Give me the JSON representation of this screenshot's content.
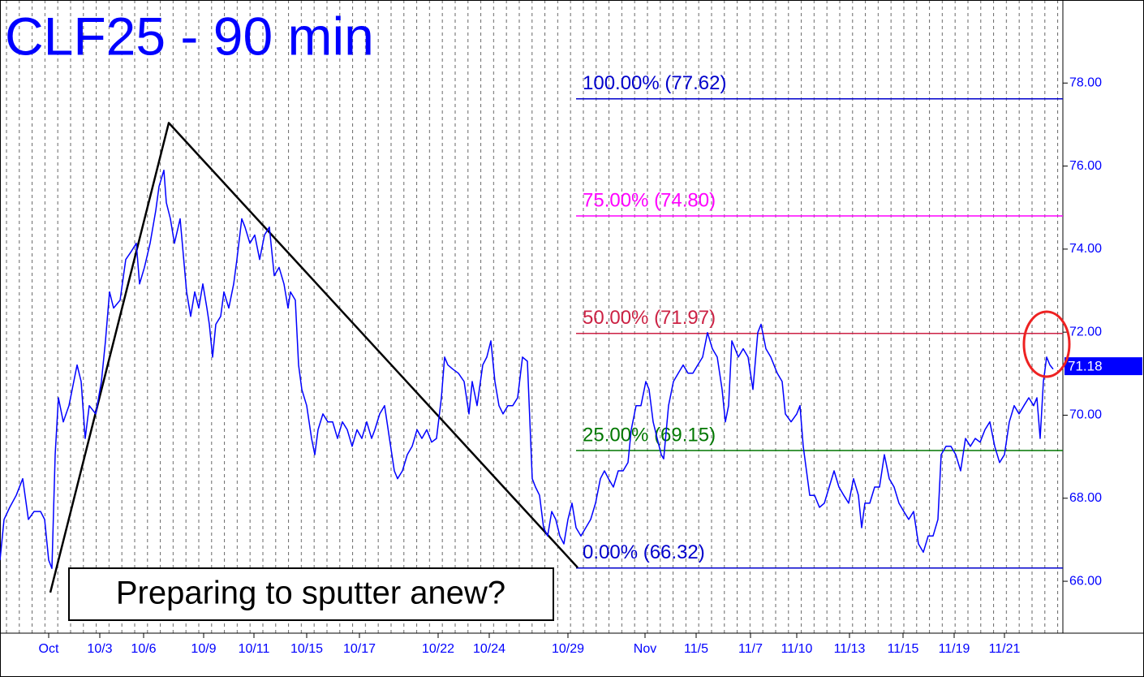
{
  "chart_data": {
    "type": "line",
    "title": "CLF25 - 90 min",
    "xlim": [
      0,
      1310
    ],
    "ylim": [
      64.75,
      80.0
    ],
    "xticks": [
      {
        "value": 60,
        "label": "Oct"
      },
      {
        "value": 123,
        "label": "10/3"
      },
      {
        "value": 177,
        "label": "10/6"
      },
      {
        "value": 251,
        "label": "10/9"
      },
      {
        "value": 313,
        "label": "10/11"
      },
      {
        "value": 378,
        "label": "10/15"
      },
      {
        "value": 443,
        "label": "10/17"
      },
      {
        "value": 540,
        "label": "10/22"
      },
      {
        "value": 603,
        "label": "10/24"
      },
      {
        "value": 700,
        "label": "10/29"
      },
      {
        "value": 795,
        "label": "Nov"
      },
      {
        "value": 858,
        "label": "11/5"
      },
      {
        "value": 925,
        "label": "11/7"
      },
      {
        "value": 982,
        "label": "11/10"
      },
      {
        "value": 1047,
        "label": "11/13"
      },
      {
        "value": 1113,
        "label": "11/15"
      },
      {
        "value": 1176,
        "label": "11/19"
      },
      {
        "value": 1238,
        "label": "11/21"
      }
    ],
    "yticks": [
      {
        "value": 66,
        "label": "66.00"
      },
      {
        "value": 68,
        "label": "68.00"
      },
      {
        "value": 70,
        "label": "70.00"
      },
      {
        "value": 72,
        "label": "72.00"
      },
      {
        "value": 74,
        "label": "74.00"
      },
      {
        "value": 76,
        "label": "76.00"
      },
      {
        "value": 78,
        "label": "78.00"
      }
    ],
    "series": [
      {
        "color": "#0000ff",
        "x": [
          0,
          5,
          12,
          20,
          28,
          35,
          42,
          50,
          55,
          60,
          64,
          68,
          72,
          78,
          85,
          95,
          100,
          105,
          110,
          118,
          125,
          130,
          135,
          140,
          148,
          155,
          162,
          168,
          172,
          178,
          185,
          192,
          196,
          202,
          205,
          210,
          215,
          222,
          230,
          235,
          240,
          245,
          250,
          255,
          258,
          262,
          266,
          272,
          276,
          282,
          288,
          292,
          298,
          302,
          308,
          314,
          320,
          326,
          332,
          338,
          344,
          350,
          355,
          358,
          364,
          368,
          372,
          378,
          384,
          388,
          392,
          398,
          404,
          410,
          416,
          422,
          428,
          434,
          440,
          446,
          452,
          458,
          462,
          468,
          474,
          480,
          486,
          490,
          496,
          502,
          508,
          514,
          520,
          526,
          532,
          538,
          544,
          548,
          552,
          558,
          565,
          572,
          578,
          582,
          588,
          595,
          600,
          605,
          610,
          615,
          620,
          626,
          632,
          638,
          644,
          650,
          656,
          660,
          665,
          670,
          675,
          680,
          685,
          690,
          695,
          700,
          705,
          710,
          716,
          722,
          728,
          734,
          740,
          745,
          750,
          756,
          762,
          768,
          774,
          778,
          784,
          790,
          796,
          800,
          805,
          810,
          815,
          818,
          824,
          830,
          836,
          842,
          848,
          854,
          860,
          866,
          872,
          878,
          884,
          890,
          894,
          898,
          902,
          906,
          910,
          916,
          922,
          928,
          934,
          938,
          944,
          950,
          958,
          964,
          968,
          975,
          982,
          986,
          990,
          994,
          998,
          1004,
          1010,
          1016,
          1022,
          1028,
          1034,
          1040,
          1046,
          1052,
          1058,
          1062,
          1066,
          1072,
          1078,
          1084,
          1090,
          1096,
          1102,
          1108,
          1114,
          1120,
          1126,
          1132,
          1138,
          1144,
          1150,
          1156,
          1160,
          1166,
          1172,
          1178,
          1184,
          1190,
          1196,
          1202,
          1208,
          1214,
          1220,
          1226,
          1232,
          1238,
          1244,
          1250,
          1256,
          1262,
          1268,
          1274,
          1278,
          1282,
          1286,
          1290,
          1294,
          1298
        ],
        "values": [
          66.51,
          67.49,
          67.78,
          68.07,
          68.47,
          67.49,
          67.68,
          67.68,
          67.49,
          66.51,
          66.31,
          69.05,
          70.42,
          69.84,
          70.23,
          71.21,
          70.81,
          69.44,
          70.23,
          70.03,
          70.81,
          71.79,
          72.97,
          72.58,
          72.77,
          73.75,
          73.95,
          74.14,
          73.16,
          73.56,
          74.14,
          74.93,
          75.51,
          75.9,
          75.12,
          74.73,
          74.14,
          74.73,
          72.97,
          72.38,
          72.97,
          72.58,
          73.16,
          72.58,
          72.19,
          71.4,
          72.19,
          72.38,
          72.97,
          72.58,
          73.16,
          73.75,
          74.73,
          74.53,
          74.14,
          74.34,
          73.75,
          74.34,
          74.53,
          73.36,
          73.56,
          73.16,
          72.58,
          72.97,
          72.77,
          71.21,
          70.62,
          70.23,
          69.44,
          69.05,
          69.65,
          70.03,
          69.84,
          69.84,
          69.44,
          69.84,
          69.65,
          69.25,
          69.65,
          69.44,
          69.84,
          69.44,
          69.65,
          70.03,
          70.23,
          69.44,
          68.66,
          68.47,
          68.66,
          69.05,
          69.25,
          69.65,
          69.44,
          69.65,
          69.35,
          69.44,
          70.42,
          71.4,
          71.21,
          71.11,
          71.01,
          70.81,
          70.03,
          70.81,
          70.23,
          71.21,
          71.4,
          71.79,
          70.81,
          70.23,
          70.03,
          70.23,
          70.23,
          70.42,
          71.4,
          71.3,
          68.47,
          68.27,
          68.07,
          67.29,
          67.09,
          67.68,
          67.49,
          67.09,
          66.9,
          67.49,
          67.88,
          67.29,
          67.09,
          67.29,
          67.49,
          67.88,
          68.47,
          68.66,
          68.47,
          68.27,
          68.66,
          68.66,
          68.86,
          69.65,
          70.23,
          70.23,
          70.81,
          70.62,
          69.84,
          69.44,
          69.05,
          68.95,
          70.23,
          70.81,
          71.01,
          71.21,
          71.01,
          71.01,
          71.21,
          71.4,
          71.99,
          71.6,
          71.4,
          70.62,
          69.84,
          70.23,
          71.79,
          71.6,
          71.4,
          71.6,
          71.4,
          70.62,
          71.99,
          72.19,
          71.6,
          71.4,
          71.01,
          70.81,
          70.03,
          69.84,
          70.03,
          70.23,
          69.25,
          68.66,
          68.07,
          68.07,
          67.78,
          67.88,
          68.27,
          68.66,
          68.27,
          68.07,
          67.88,
          68.47,
          68.07,
          67.29,
          67.88,
          67.88,
          68.27,
          68.27,
          69.05,
          68.47,
          68.27,
          67.88,
          67.68,
          67.49,
          67.68,
          66.9,
          66.7,
          67.09,
          67.09,
          67.49,
          69.05,
          69.25,
          69.25,
          69.05,
          68.66,
          69.44,
          69.25,
          69.44,
          69.35,
          69.65,
          69.84,
          69.25,
          68.86,
          69.05,
          69.84,
          70.23,
          70.03,
          70.23,
          70.42,
          70.23,
          70.42,
          69.44,
          70.81,
          71.4,
          71.21,
          71.11
        ]
      }
    ],
    "fib_levels": [
      {
        "label": "100.00% (77.62)",
        "value": 77.62,
        "color": "#0000cc"
      },
      {
        "label": "75.00% (74.80)",
        "value": 74.8,
        "color": "#ff00ff"
      },
      {
        "label": "50.00% (71.97)",
        "value": 71.97,
        "color": "#cc2244"
      },
      {
        "label": "25.00% (69.15)",
        "value": 69.15,
        "color": "#007700"
      },
      {
        "label": "0.00% (66.32)",
        "value": 66.32,
        "color": "#0000cc"
      }
    ],
    "trend_lines": {
      "x": [
        62,
        208,
        712
      ],
      "values": [
        65.73,
        77.04,
        66.33
      ]
    },
    "last_price": {
      "value": 71.18,
      "label": "71.18"
    },
    "annotation": "Preparing to sputter anew?"
  }
}
